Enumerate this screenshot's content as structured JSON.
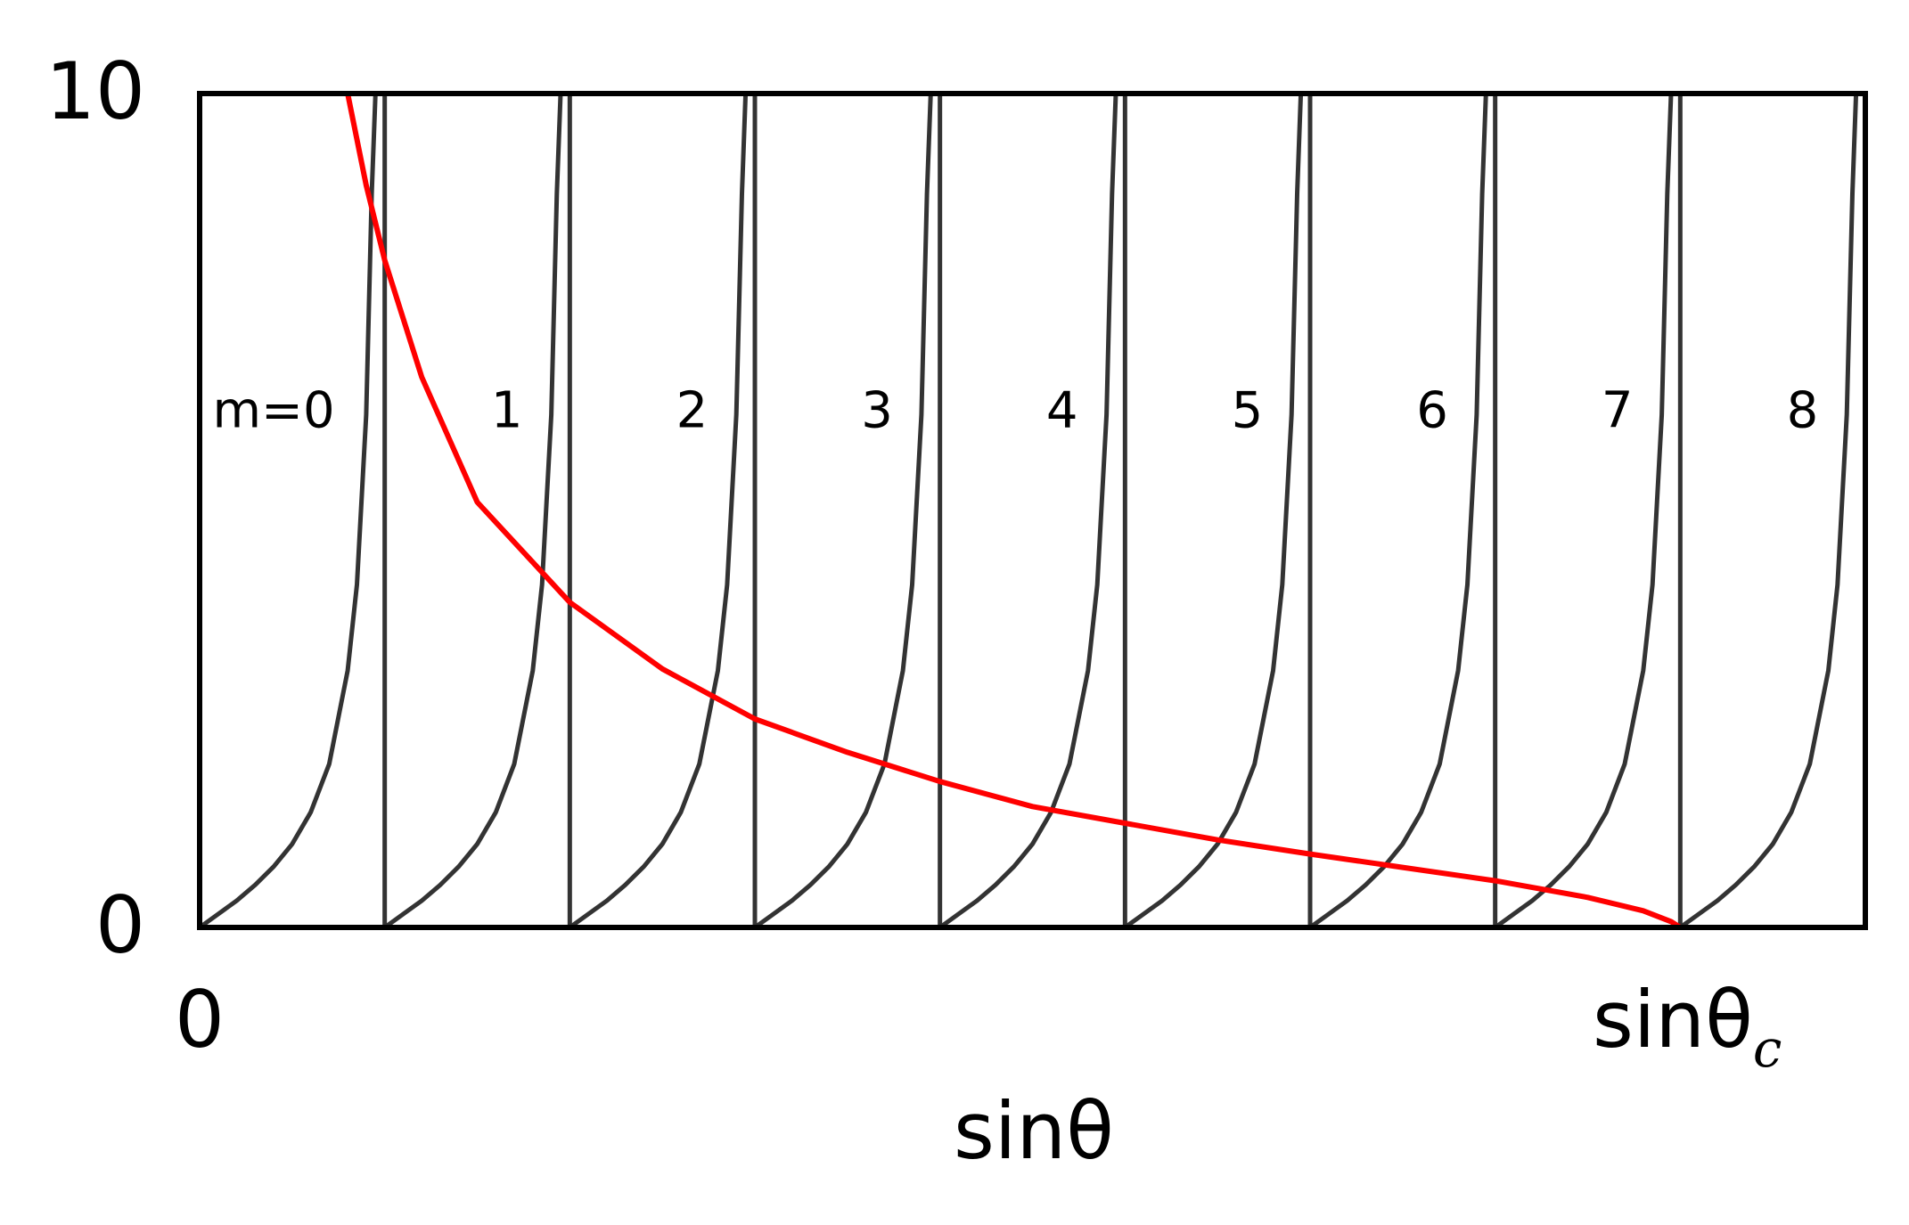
{
  "chart_data": {
    "type": "line",
    "title": "",
    "xlabel": "sinθ",
    "ylabel": "",
    "xlim": [
      0,
      9
    ],
    "ylim": [
      0,
      10
    ],
    "grid": false,
    "x_ticks": [
      {
        "value": 0,
        "label": "0"
      },
      {
        "value": 8,
        "label": "sinθ",
        "subscript": "c"
      }
    ],
    "y_ticks": [
      {
        "value": 0,
        "label": "0"
      },
      {
        "value": 10,
        "label": "10"
      }
    ],
    "mode_labels": [
      "m=0",
      "1",
      "2",
      "3",
      "4",
      "5",
      "6",
      "7",
      "8"
    ],
    "mode_series": {
      "color": "#333333",
      "x_in_each_interval": [
        0,
        0.1,
        0.2,
        0.3,
        0.4,
        0.5,
        0.6,
        0.7,
        0.8,
        0.85,
        0.9,
        0.93,
        0.95,
        0.97,
        0.98,
        0.99,
        0.995
      ],
      "y": [
        0,
        0.16,
        0.32,
        0.51,
        0.73,
        1.0,
        1.38,
        1.96,
        3.08,
        4.11,
        6.15,
        8.8,
        10,
        10,
        10,
        10,
        10
      ]
    },
    "vertical_lines_x": [
      1,
      2,
      3,
      4,
      5,
      6,
      7,
      8,
      9
    ],
    "series": [
      {
        "color": "#ff0000",
        "x": [
          0.8,
          0.9,
          1.0,
          1.2,
          1.5,
          2.0,
          2.5,
          3.0,
          3.5,
          4.0,
          4.5,
          5.0,
          5.5,
          6.0,
          6.5,
          7.0,
          7.5,
          7.8,
          7.95,
          8.0
        ],
        "y": [
          10,
          8.9,
          8.0,
          6.6,
          5.1,
          3.9,
          3.1,
          2.5,
          2.1,
          1.75,
          1.45,
          1.25,
          1.05,
          0.88,
          0.72,
          0.56,
          0.36,
          0.2,
          0.07,
          0
        ]
      }
    ]
  }
}
